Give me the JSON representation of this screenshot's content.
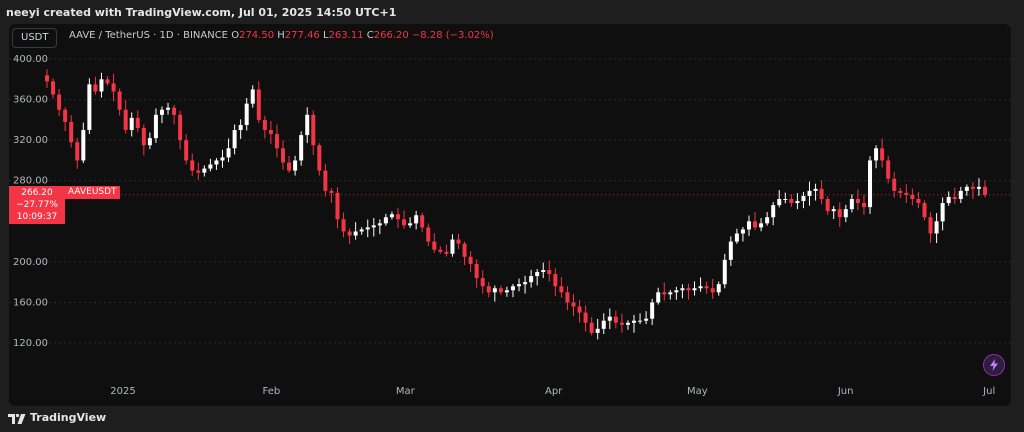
{
  "header": {
    "text": "neeyi created with TradingView.com, Jul 01, 2025 14:50 UTC+1"
  },
  "toolbar": {
    "symbol_button": "USDT"
  },
  "legend": {
    "title": "AAVE / TetherUS · 1D · BINANCE",
    "o_label": "O",
    "o_value": "274.50",
    "h_label": "H",
    "h_value": "277.46",
    "l_label": "L",
    "l_value": "263.11",
    "c_label": "C",
    "c_value": "266.20",
    "change": "−8.28 (−3.02%)"
  },
  "price_label": {
    "price": "266.20",
    "change_pct": "−27.77%",
    "countdown": "10:09:37",
    "symbol": "AAVEUSDT"
  },
  "footer": {
    "brand": "TradingView"
  },
  "colors": {
    "up": "#ffffff",
    "down": "#f23645",
    "background": "#0f0f0f",
    "grid": "#2a2a2a",
    "accent_bolt": "#9c27b0"
  },
  "icons": {
    "assistant": "bolt-icon",
    "brand": "tradingview-logo-icon"
  },
  "chart_data": {
    "type": "candlestick",
    "symbol": "AAVEUSDT",
    "interval": "1D",
    "y_ticks": [
      400,
      360,
      320,
      280,
      200,
      160,
      120
    ],
    "y_tick_labels": [
      "400.00",
      "360.00",
      "320.00",
      "280.00",
      "200.00",
      "160.00",
      "120.00"
    ],
    "ylim": [
      108,
      402
    ],
    "x_labels": [
      {
        "label": "2025",
        "date": "2025-01-01"
      },
      {
        "label": "Feb",
        "date": "2025-02-01"
      },
      {
        "label": "Mar",
        "date": "2025-03-01"
      },
      {
        "label": "Apr",
        "date": "2025-04-01"
      },
      {
        "label": "May",
        "date": "2025-05-01"
      },
      {
        "label": "Jun",
        "date": "2025-06-01"
      },
      {
        "label": "Jul",
        "date": "2025-07-01"
      }
    ],
    "x_start": "2024-12-18",
    "x_end": "2025-07-02",
    "last_close": 266.2,
    "close": [
      378,
      365,
      350,
      338,
      318,
      300,
      330,
      375,
      368,
      380,
      376,
      368,
      350,
      330,
      342,
      332,
      315,
      322,
      345,
      350,
      352,
      345,
      320,
      300,
      290,
      288,
      292,
      296,
      300,
      303,
      312,
      330,
      335,
      356,
      370,
      340,
      330,
      326,
      312,
      298,
      290,
      300,
      325,
      345,
      315,
      290,
      270,
      268,
      242,
      230,
      226,
      230,
      232,
      234,
      236,
      238,
      244,
      247,
      242,
      236,
      238,
      246,
      234,
      220,
      212,
      210,
      208,
      222,
      218,
      205,
      198,
      184,
      176,
      170,
      174,
      170,
      172,
      176,
      178,
      180,
      186,
      190,
      192,
      188,
      176,
      170,
      160,
      156,
      150,
      140,
      130,
      134,
      142,
      146,
      140,
      138,
      140,
      142,
      142,
      144,
      160,
      170,
      168,
      170,
      172,
      174,
      172,
      174,
      176,
      174,
      170,
      178,
      202,
      220,
      228,
      232,
      240,
      234,
      238,
      244,
      256,
      262,
      262,
      258,
      260,
      265,
      270,
      272,
      262,
      250,
      252,
      244,
      252,
      262,
      258,
      254,
      300,
      312,
      300,
      282,
      270,
      268,
      266,
      262,
      258,
      244,
      228,
      240,
      258,
      264,
      262,
      270,
      274,
      272,
      274,
      266
    ]
  }
}
